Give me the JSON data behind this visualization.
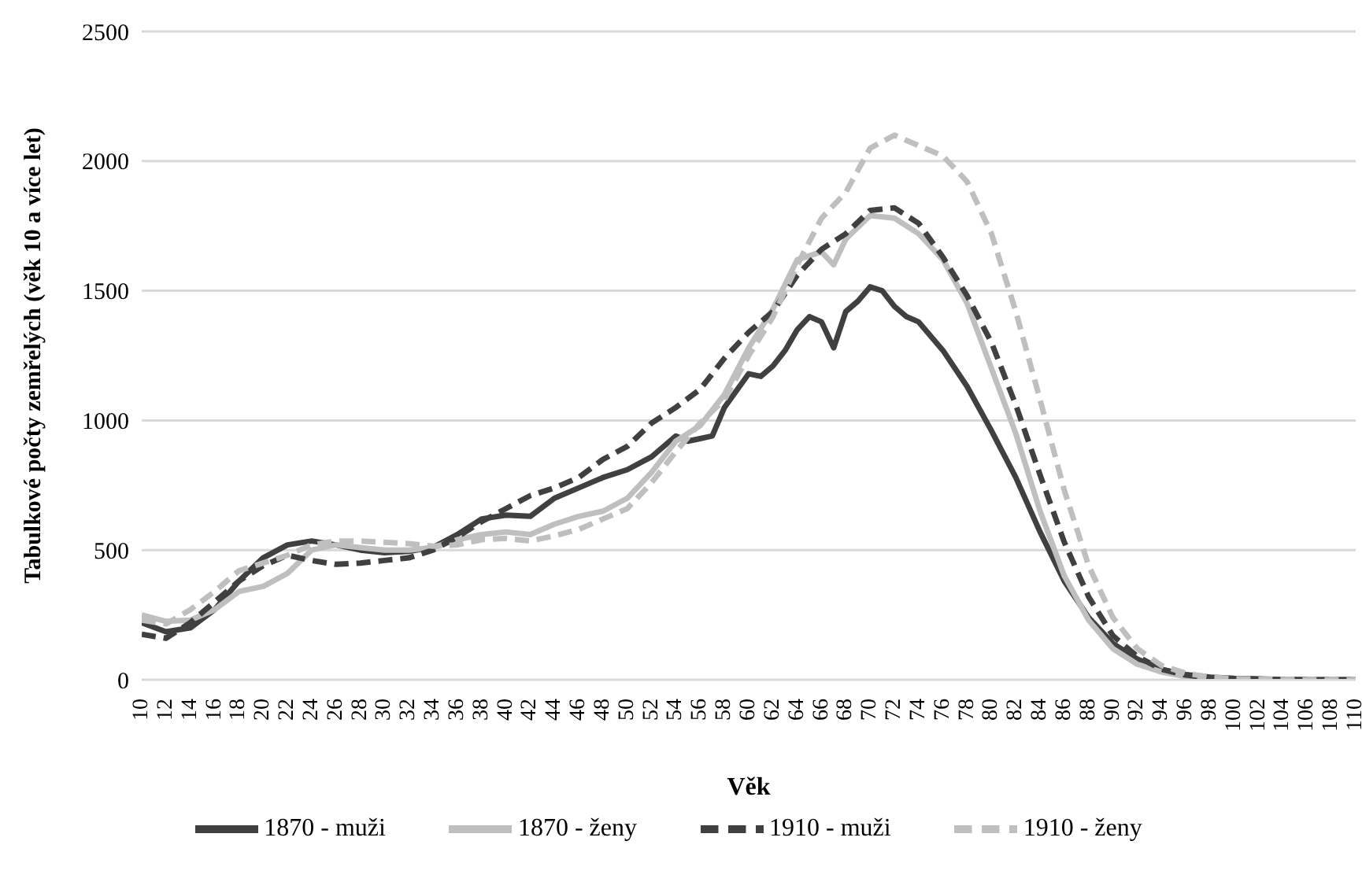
{
  "chart_data": {
    "type": "line",
    "xlabel": "Věk",
    "ylabel": "Tabulkové počty zemřelých (věk 10 a více let)",
    "xlim": [
      10,
      110
    ],
    "xticks": [
      10,
      12,
      14,
      16,
      18,
      20,
      22,
      24,
      26,
      28,
      30,
      32,
      34,
      36,
      38,
      40,
      42,
      44,
      46,
      48,
      50,
      52,
      54,
      56,
      58,
      60,
      62,
      64,
      66,
      68,
      70,
      72,
      74,
      76,
      78,
      80,
      82,
      84,
      86,
      88,
      90,
      92,
      94,
      96,
      98,
      100,
      102,
      104,
      106,
      108,
      110
    ],
    "ylim": [
      0,
      2500
    ],
    "yticks": [
      0,
      500,
      1000,
      1500,
      2000,
      2500
    ],
    "grid": "y",
    "legend": "bottom",
    "marker": "none",
    "series": [
      {
        "name": "1870 - muži",
        "color": "#404040",
        "line_style": "solid",
        "x": [
          10,
          12,
          14,
          16,
          18,
          20,
          22,
          24,
          26,
          28,
          30,
          32,
          34,
          36,
          38,
          40,
          42,
          44,
          46,
          48,
          50,
          52,
          54,
          55,
          56,
          57,
          58,
          60,
          61,
          62,
          63,
          64,
          65,
          66,
          67,
          68,
          69,
          70,
          71,
          72,
          73,
          74,
          76,
          78,
          80,
          82,
          84,
          86,
          88,
          90,
          92,
          94,
          96,
          98,
          100,
          102,
          104,
          106,
          108,
          110
        ],
        "values": [
          220,
          185,
          200,
          270,
          380,
          470,
          520,
          535,
          520,
          500,
          490,
          495,
          510,
          560,
          620,
          635,
          630,
          700,
          740,
          780,
          810,
          860,
          940,
          920,
          930,
          940,
          1050,
          1180,
          1170,
          1210,
          1270,
          1350,
          1400,
          1380,
          1280,
          1420,
          1460,
          1515,
          1500,
          1440,
          1400,
          1380,
          1270,
          1130,
          960,
          780,
          570,
          380,
          240,
          140,
          80,
          40,
          20,
          10,
          5,
          3,
          1,
          0,
          0,
          0
        ]
      },
      {
        "name": "1870 - ženy",
        "color": "#bfbfbf",
        "line_style": "solid",
        "x": [
          10,
          12,
          14,
          16,
          18,
          20,
          22,
          24,
          26,
          28,
          30,
          32,
          34,
          36,
          38,
          40,
          42,
          44,
          46,
          48,
          50,
          52,
          54,
          56,
          58,
          60,
          62,
          64,
          66,
          67,
          68,
          70,
          72,
          74,
          76,
          78,
          80,
          82,
          84,
          86,
          88,
          90,
          92,
          94,
          96,
          98,
          100,
          102,
          104,
          106,
          108,
          110
        ],
        "values": [
          250,
          225,
          230,
          270,
          340,
          360,
          410,
          500,
          520,
          510,
          500,
          500,
          510,
          540,
          560,
          570,
          560,
          600,
          630,
          650,
          700,
          800,
          920,
          980,
          1100,
          1280,
          1430,
          1620,
          1650,
          1600,
          1700,
          1790,
          1780,
          1720,
          1620,
          1450,
          1200,
          950,
          650,
          400,
          230,
          120,
          60,
          30,
          12,
          5,
          2,
          1,
          0,
          0,
          0,
          0
        ]
      },
      {
        "name": "1910 - muži",
        "color": "#404040",
        "line_style": "dashed",
        "x": [
          10,
          12,
          14,
          16,
          18,
          20,
          22,
          24,
          26,
          28,
          30,
          32,
          34,
          36,
          38,
          40,
          42,
          44,
          46,
          48,
          50,
          52,
          54,
          56,
          58,
          60,
          62,
          64,
          66,
          68,
          70,
          72,
          74,
          76,
          78,
          80,
          82,
          84,
          86,
          88,
          90,
          92,
          94,
          96,
          98,
          100,
          102,
          104,
          106,
          108,
          110
        ],
        "values": [
          175,
          160,
          220,
          300,
          380,
          440,
          480,
          460,
          445,
          450,
          460,
          470,
          500,
          550,
          610,
          660,
          710,
          740,
          780,
          850,
          900,
          990,
          1050,
          1120,
          1240,
          1340,
          1420,
          1560,
          1660,
          1720,
          1810,
          1820,
          1760,
          1630,
          1480,
          1300,
          1060,
          790,
          530,
          320,
          170,
          90,
          40,
          18,
          8,
          4,
          2,
          1,
          0,
          0,
          0
        ]
      },
      {
        "name": "1910 - ženy",
        "color": "#bfbfbf",
        "line_style": "dashed",
        "x": [
          10,
          12,
          14,
          16,
          18,
          20,
          22,
          24,
          26,
          28,
          30,
          32,
          34,
          36,
          38,
          40,
          42,
          44,
          46,
          48,
          50,
          52,
          54,
          56,
          58,
          60,
          62,
          64,
          66,
          68,
          70,
          72,
          74,
          76,
          78,
          80,
          82,
          84,
          86,
          88,
          90,
          92,
          94,
          96,
          98,
          100,
          102,
          104,
          106,
          108,
          110
        ],
        "values": [
          230,
          215,
          270,
          340,
          420,
          450,
          480,
          520,
          535,
          535,
          530,
          525,
          515,
          520,
          540,
          545,
          535,
          555,
          580,
          620,
          660,
          760,
          880,
          990,
          1080,
          1250,
          1400,
          1600,
          1780,
          1880,
          2050,
          2100,
          2060,
          2020,
          1920,
          1720,
          1420,
          1080,
          730,
          440,
          240,
          120,
          55,
          25,
          10,
          4,
          2,
          1,
          0,
          0,
          0
        ]
      }
    ]
  }
}
